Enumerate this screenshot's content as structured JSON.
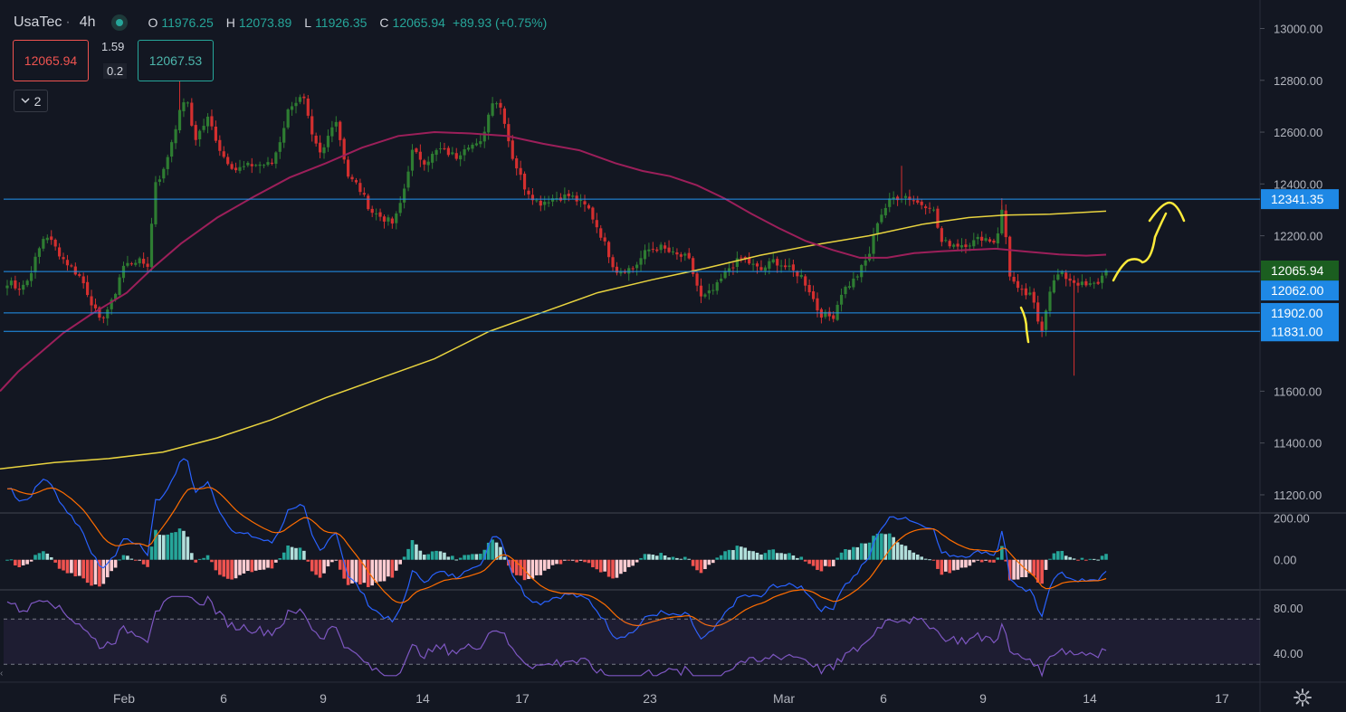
{
  "header": {
    "symbol": "UsaTec",
    "timeframe": "4h",
    "open_label": "O",
    "open": "11976.25",
    "high_label": "H",
    "high": "12073.89",
    "low_label": "L",
    "low": "11926.35",
    "close_label": "C",
    "close": "12065.94",
    "change": "+89.93 (+0.75%)"
  },
  "trade": {
    "sell": "12065.94",
    "spread_top": "1.59",
    "spread_bottom": "0.2",
    "buy": "12067.53"
  },
  "indicators_toggle": {
    "icon": "chevron-down-icon",
    "count": "2"
  },
  "colors": {
    "background": "#131722",
    "up": "#26a69a",
    "down": "#ef5350",
    "hline": "#2196f3",
    "ma_fast": "#9c1f5a",
    "ma_slow": "#e8d33f",
    "rsi": "#7e57c2",
    "drawing": "#ffeb3b"
  },
  "chart_data": [
    {
      "type": "candlestick",
      "name": "UsaTec",
      "y_ticks": [
        "13000.00",
        "12800.00",
        "12600.00",
        "12400.00",
        "12200.00",
        "11600.00",
        "11400.00",
        "11200.00"
      ],
      "ylim": [
        11130,
        13110
      ],
      "x_ticks": [
        "Feb",
        "6",
        "9",
        "14",
        "17",
        "23",
        "Mar",
        "6",
        "9",
        "14",
        "17"
      ],
      "price_labels": [
        {
          "value": "12341.35",
          "kind": "line"
        },
        {
          "value": "12065.94",
          "kind": "last"
        },
        {
          "value": "12062.00",
          "kind": "line"
        },
        {
          "value": "11902.00",
          "kind": "line"
        },
        {
          "value": "11831.00",
          "kind": "line"
        }
      ],
      "horizontal_lines": [
        12341.35,
        12062,
        11902,
        11831
      ],
      "ma_fast_points": [
        [
          0,
          11600
        ],
        [
          20,
          11675
        ],
        [
          40,
          11735
        ],
        [
          70,
          11825
        ],
        [
          100,
          11895
        ],
        [
          140,
          11980
        ],
        [
          170,
          12080
        ],
        [
          200,
          12170
        ],
        [
          240,
          12270
        ],
        [
          280,
          12350
        ],
        [
          320,
          12425
        ],
        [
          360,
          12480
        ],
        [
          400,
          12540
        ],
        [
          440,
          12585
        ],
        [
          480,
          12600
        ],
        [
          520,
          12595
        ],
        [
          560,
          12585
        ],
        [
          600,
          12555
        ],
        [
          640,
          12530
        ],
        [
          680,
          12480
        ],
        [
          710,
          12450
        ],
        [
          740,
          12430
        ],
        [
          770,
          12395
        ],
        [
          800,
          12345
        ],
        [
          830,
          12285
        ],
        [
          860,
          12230
        ],
        [
          890,
          12180
        ],
        [
          920,
          12145
        ],
        [
          950,
          12115
        ],
        [
          980,
          12115
        ],
        [
          1010,
          12133
        ],
        [
          1040,
          12140
        ],
        [
          1070,
          12145
        ],
        [
          1100,
          12150
        ],
        [
          1130,
          12140
        ],
        [
          1170,
          12128
        ],
        [
          1200,
          12123
        ],
        [
          1222,
          12127
        ]
      ],
      "ma_slow_points": [
        [
          0,
          11300
        ],
        [
          60,
          11325
        ],
        [
          120,
          11340
        ],
        [
          180,
          11365
        ],
        [
          240,
          11420
        ],
        [
          300,
          11490
        ],
        [
          360,
          11575
        ],
        [
          420,
          11650
        ],
        [
          480,
          11725
        ],
        [
          540,
          11830
        ],
        [
          600,
          11905
        ],
        [
          660,
          11980
        ],
        [
          720,
          12030
        ],
        [
          780,
          12075
        ],
        [
          840,
          12125
        ],
        [
          900,
          12165
        ],
        [
          960,
          12200
        ],
        [
          1020,
          12245
        ],
        [
          1070,
          12270
        ],
        [
          1110,
          12280
        ],
        [
          1160,
          12283
        ],
        [
          1222,
          12295
        ]
      ],
      "candle_count": 275,
      "anchors": [
        [
          0,
          11900
        ],
        [
          10,
          12035
        ],
        [
          20,
          11995
        ],
        [
          30,
          12025
        ],
        [
          50,
          12210
        ],
        [
          70,
          12110
        ],
        [
          90,
          12035
        ],
        [
          110,
          11870
        ],
        [
          125,
          11950
        ],
        [
          135,
          12080
        ],
        [
          150,
          12105
        ],
        [
          165,
          12085
        ],
        [
          170,
          12405
        ],
        [
          180,
          12440
        ],
        [
          195,
          12635
        ],
        [
          205,
          12745
        ],
        [
          215,
          12570
        ],
        [
          230,
          12655
        ],
        [
          245,
          12515
        ],
        [
          260,
          12455
        ],
        [
          280,
          12475
        ],
        [
          300,
          12475
        ],
        [
          310,
          12575
        ],
        [
          320,
          12705
        ],
        [
          335,
          12735
        ],
        [
          345,
          12575
        ],
        [
          355,
          12505
        ],
        [
          370,
          12665
        ],
        [
          385,
          12425
        ],
        [
          395,
          12395
        ],
        [
          410,
          12295
        ],
        [
          425,
          12265
        ],
        [
          435,
          12245
        ],
        [
          445,
          12355
        ],
        [
          455,
          12525
        ],
        [
          470,
          12485
        ],
        [
          485,
          12535
        ],
        [
          505,
          12505
        ],
        [
          515,
          12555
        ],
        [
          530,
          12545
        ],
        [
          545,
          12735
        ],
        [
          555,
          12685
        ],
        [
          565,
          12515
        ],
        [
          580,
          12385
        ],
        [
          595,
          12325
        ],
        [
          610,
          12345
        ],
        [
          630,
          12355
        ],
        [
          650,
          12305
        ],
        [
          665,
          12195
        ],
        [
          680,
          12065
        ],
        [
          700,
          12075
        ],
        [
          715,
          12145
        ],
        [
          730,
          12155
        ],
        [
          745,
          12125
        ],
        [
          760,
          12115
        ],
        [
          775,
          11955
        ],
        [
          790,
          11995
        ],
        [
          805,
          12075
        ],
        [
          820,
          12115
        ],
        [
          840,
          12065
        ],
        [
          855,
          12105
        ],
        [
          870,
          12075
        ],
        [
          885,
          12045
        ],
        [
          895,
          11985
        ],
        [
          905,
          11900
        ],
        [
          920,
          11885
        ],
        [
          930,
          11985
        ],
        [
          945,
          12035
        ],
        [
          960,
          12125
        ],
        [
          970,
          12265
        ],
        [
          985,
          12345
        ],
        [
          1000,
          12355
        ],
        [
          1015,
          12325
        ],
        [
          1030,
          12315
        ],
        [
          1040,
          12175
        ],
        [
          1060,
          12165
        ],
        [
          1075,
          12175
        ],
        [
          1085,
          12195
        ],
        [
          1100,
          12175
        ],
        [
          1108,
          12315
        ],
        [
          1115,
          12055
        ],
        [
          1125,
          11985
        ],
        [
          1140,
          11965
        ],
        [
          1150,
          11825
        ],
        [
          1160,
          11995
        ],
        [
          1170,
          12055
        ],
        [
          1185,
          12025
        ],
        [
          1200,
          12005
        ],
        [
          1212,
          12015
        ],
        [
          1222,
          12066
        ]
      ],
      "wick_spikes": [
        [
          1185,
          11660
        ],
        [
          995,
          12470
        ],
        [
          200,
          12890
        ],
        [
          1108,
          12345
        ]
      ]
    },
    {
      "type": "macd",
      "y_ticks": [
        "200.00",
        "0.00"
      ],
      "ylim": [
        -140,
        220
      ]
    },
    {
      "type": "rsi",
      "y_ticks": [
        "80.00",
        "40.00"
      ],
      "ylim": [
        15,
        95
      ],
      "band": [
        70,
        30
      ]
    }
  ]
}
